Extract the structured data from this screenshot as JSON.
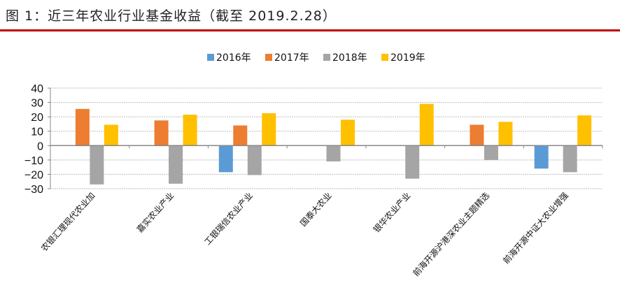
{
  "header": {
    "title": "图 1：近三年农业行业基金收益（截至 2019.2.28）",
    "accent": "#c00000"
  },
  "chart_data": {
    "type": "bar",
    "title": "",
    "xlabel": "",
    "ylabel": "",
    "ylim": [
      -30,
      40
    ],
    "yticks": [
      40,
      30,
      20,
      10,
      0,
      -10,
      -20,
      -30
    ],
    "grid": true,
    "legend": "top",
    "categories": [
      "农银汇理现代农业加",
      "嘉实农业产业",
      "工银瑞信农业产业",
      "国泰大农业",
      "银华农业产业",
      "前海开源沪港深农业主题精选",
      "前海开源中证大农业增强"
    ],
    "series": [
      {
        "name": "2016年",
        "color": "#5b9bd5",
        "values": [
          null,
          null,
          -18.5,
          null,
          null,
          null,
          -16
        ]
      },
      {
        "name": "2017年",
        "color": "#ed7d31",
        "values": [
          25.5,
          17.5,
          14,
          null,
          null,
          14.5,
          null
        ]
      },
      {
        "name": "2018年",
        "color": "#a5a5a5",
        "values": [
          -27,
          -26.5,
          -20.5,
          -11,
          -23,
          -10,
          -18.5
        ]
      },
      {
        "name": "2019年",
        "color": "#ffc000",
        "values": [
          14.5,
          21.5,
          22.5,
          18,
          29,
          16.5,
          21
        ]
      }
    ]
  }
}
